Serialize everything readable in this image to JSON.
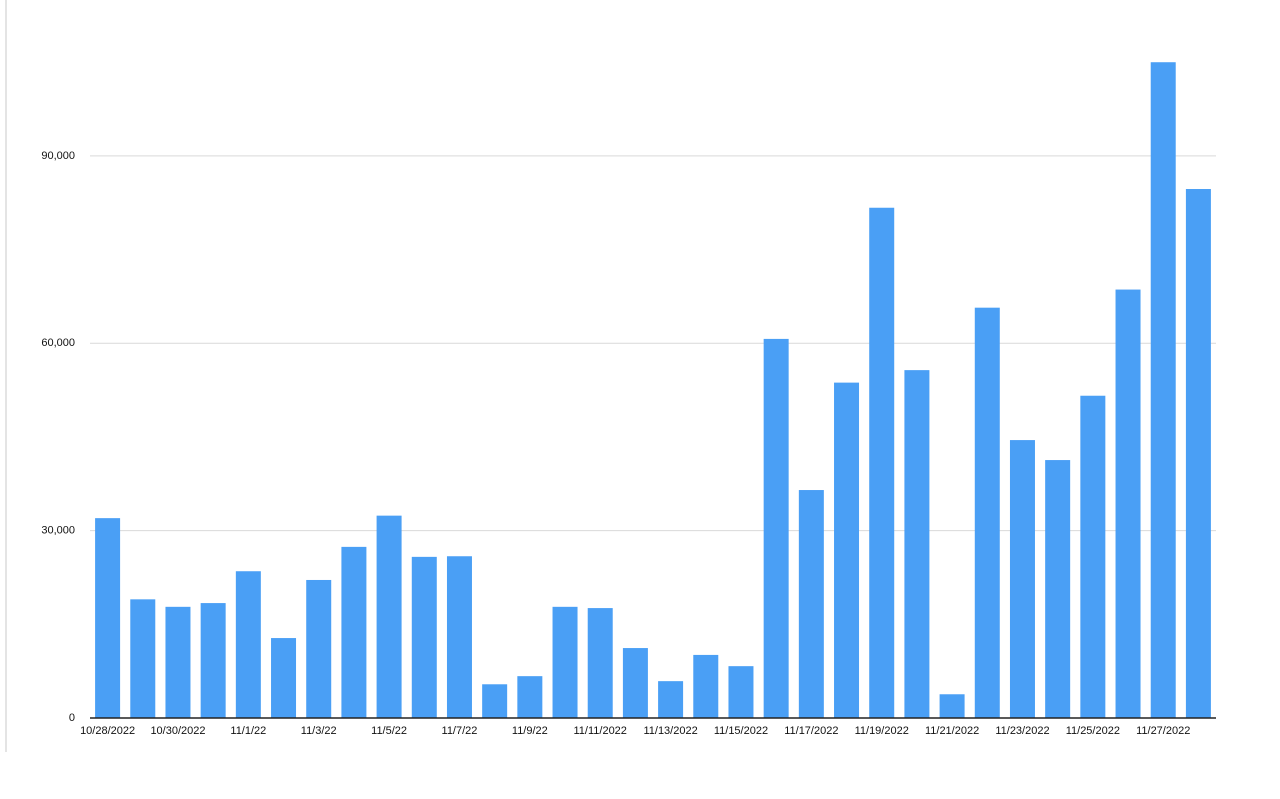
{
  "chart_data": {
    "type": "bar",
    "categories": [
      "10/28/2022",
      null,
      "10/30/2022",
      null,
      "11/1/22",
      null,
      "11/3/22",
      null,
      "11/5/22",
      null,
      "11/7/22",
      null,
      "11/9/22",
      null,
      "11/11/2022",
      null,
      "11/13/2022",
      null,
      "11/15/2022",
      null,
      "11/17/2022",
      null,
      "11/19/2022",
      null,
      "11/21/2022",
      null,
      "11/23/2022",
      null,
      "11/25/2022",
      null,
      "11/27/2022",
      null
    ],
    "values": [
      32000,
      19000,
      17800,
      18400,
      23500,
      12800,
      22100,
      27400,
      32400,
      25800,
      25900,
      5400,
      6700,
      17800,
      17600,
      11200,
      5900,
      10100,
      8300,
      60700,
      36500,
      53700,
      81700,
      55700,
      3800,
      65700,
      44500,
      41300,
      51600,
      68600,
      105000,
      84700
    ],
    "color": "#4a9ff5",
    "ylim": [
      0,
      110000
    ],
    "yticks": [
      0,
      {
        "value": 30000,
        "label": "30,000"
      },
      {
        "value": 60000,
        "label": "60,000"
      },
      {
        "value": 90000,
        "label": "90,000"
      }
    ],
    "grid": true
  }
}
